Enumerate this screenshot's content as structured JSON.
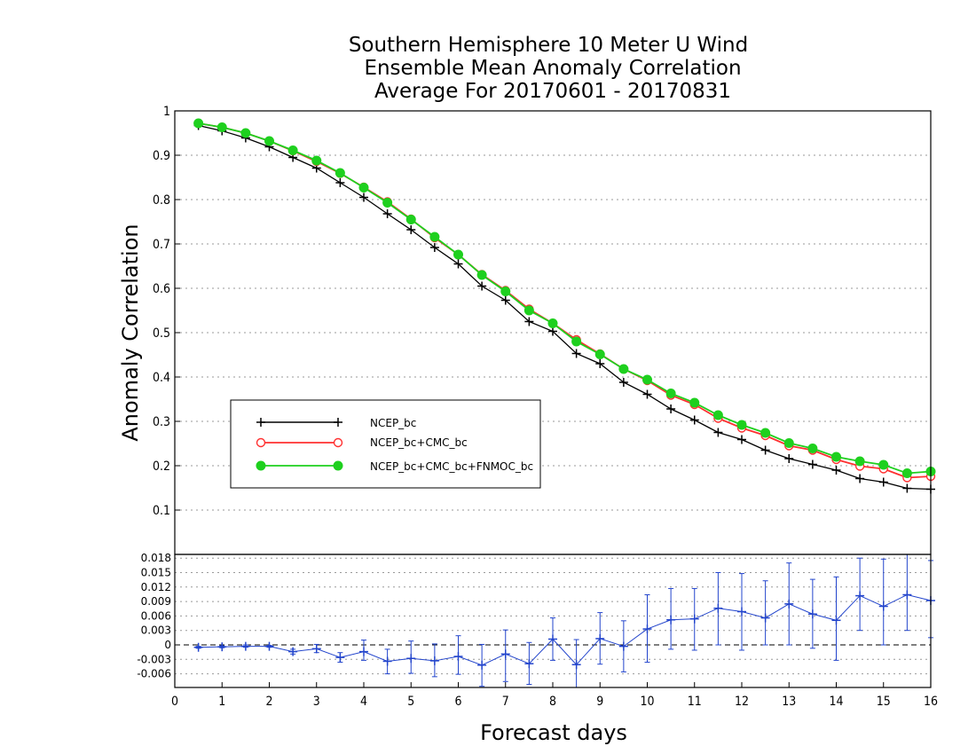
{
  "title_lines": [
    "Southern Hemisphere 10 Meter U Wind",
    "Ensemble Mean Anomaly Correlation",
    "Average For 20170601 - 20170831"
  ],
  "xlabel": "Forecast days",
  "ylabel": "Anomaly Correlation",
  "chart_data": [
    {
      "type": "line",
      "title": "Southern Hemisphere 10 Meter U Wind Ensemble Mean Anomaly Correlation Average For 20170601 - 20170831",
      "xlabel": "Forecast days",
      "ylabel": "Anomaly Correlation",
      "xlim": [
        0,
        16
      ],
      "ylim": [
        0,
        1
      ],
      "x_ticks": [
        "0",
        "1",
        "2",
        "3",
        "4",
        "5",
        "6",
        "7",
        "8",
        "9",
        "10",
        "11",
        "12",
        "13",
        "14",
        "15",
        "16"
      ],
      "y_ticks": [
        "0.1",
        "0.2",
        "0.3",
        "0.4",
        "0.5",
        "0.6",
        "0.7",
        "0.8",
        "0.9",
        "1"
      ],
      "grid": "horizontal dotted",
      "legend_position": "lower-left",
      "x": [
        0.5,
        1,
        1.5,
        2,
        2.5,
        3,
        3.5,
        4,
        4.5,
        5,
        5.5,
        6,
        6.5,
        7,
        7.5,
        8,
        8.5,
        9,
        9.5,
        10,
        10.5,
        11,
        11.5,
        12,
        12.5,
        13,
        13.5,
        14,
        14.5,
        15,
        15.5,
        16
      ],
      "series": [
        {
          "name": "NCEP_bc",
          "color": "#000000",
          "marker": "plus",
          "values": [
            0.967,
            0.955,
            0.939,
            0.919,
            0.895,
            0.871,
            0.838,
            0.805,
            0.768,
            0.732,
            0.692,
            0.655,
            0.605,
            0.573,
            0.525,
            0.503,
            0.453,
            0.43,
            0.388,
            0.361,
            0.328,
            0.303,
            0.275,
            0.259,
            0.235,
            0.216,
            0.203,
            0.19,
            0.171,
            0.163,
            0.149,
            0.147
          ]
        },
        {
          "name": "NCEP_bc+CMC_bc",
          "color": "#ff3030",
          "marker": "open-circle",
          "values": [
            0.972,
            0.963,
            0.95,
            0.932,
            0.91,
            0.886,
            0.859,
            0.828,
            0.795,
            0.756,
            0.714,
            0.676,
            0.631,
            0.595,
            0.553,
            0.521,
            0.484,
            0.452,
            0.418,
            0.392,
            0.359,
            0.338,
            0.307,
            0.285,
            0.268,
            0.245,
            0.235,
            0.214,
            0.199,
            0.193,
            0.173,
            0.176
          ]
        },
        {
          "name": "NCEP_bc+CMC_bc+FNMOC_bc",
          "color": "#1ed01e",
          "marker": "filled-circle",
          "values": [
            0.972,
            0.963,
            0.95,
            0.932,
            0.911,
            0.888,
            0.86,
            0.827,
            0.793,
            0.755,
            0.716,
            0.676,
            0.63,
            0.593,
            0.55,
            0.521,
            0.48,
            0.451,
            0.418,
            0.394,
            0.363,
            0.342,
            0.314,
            0.292,
            0.274,
            0.251,
            0.239,
            0.22,
            0.21,
            0.202,
            0.183,
            0.187
          ]
        }
      ]
    },
    {
      "type": "line",
      "subtype": "error-bars",
      "xlabel": "Forecast days",
      "xlim": [
        0,
        16
      ],
      "ylim": [
        -0.009,
        0.019
      ],
      "y_ticks": [
        "-0.006",
        "-0.003",
        "0",
        "0.003",
        "0.006",
        "0.009",
        "0.012",
        "0.015",
        "0.018"
      ],
      "x": [
        0.5,
        1,
        1.5,
        2,
        2.5,
        3,
        3.5,
        4,
        4.5,
        5,
        5.5,
        6,
        6.5,
        7,
        7.5,
        8,
        8.5,
        9,
        9.5,
        10,
        10.5,
        11,
        11.5,
        12,
        12.5,
        13,
        13.5,
        14,
        14.5,
        15,
        15.5,
        16
      ],
      "series": [
        {
          "name": "difference",
          "color": "#2244cc",
          "values": [
            -0.0005,
            -0.0004,
            -0.0003,
            -0.0003,
            -0.0014,
            -0.0008,
            -0.0026,
            -0.0014,
            -0.0034,
            -0.0028,
            -0.0033,
            -0.0024,
            -0.0042,
            -0.0019,
            -0.0039,
            0.0012,
            -0.0041,
            0.0013,
            -0.0003,
            0.0033,
            0.0052,
            0.0054,
            0.0076,
            0.0069,
            0.0056,
            0.0085,
            0.0064,
            0.0051,
            0.0102,
            0.008,
            0.0104,
            0.0092
          ],
          "error_low": [
            -0.0007,
            -0.0006,
            -0.0005,
            -0.0005,
            -0.0019,
            -0.0016,
            -0.0036,
            -0.0032,
            -0.006,
            -0.0059,
            -0.0066,
            -0.0061,
            -0.0086,
            -0.0076,
            -0.0082,
            -0.0032,
            -0.0095,
            -0.004,
            -0.0056,
            -0.0036,
            -0.0009,
            -0.0011,
            0.0,
            -0.0011,
            0.0,
            0.0,
            -0.0007,
            -0.0032,
            0.003,
            0.0,
            0.003,
            0.0015
          ],
          "error_high": [
            -0.0003,
            -0.0002,
            0.0,
            -0.0001,
            -0.0009,
            0.0001,
            -0.0016,
            0.001,
            -0.0009,
            0.0008,
            0.0002,
            0.0019,
            0.0001,
            0.0031,
            0.0005,
            0.0056,
            0.0011,
            0.0067,
            0.005,
            0.0104,
            0.0117,
            0.0117,
            0.015,
            0.0148,
            0.0133,
            0.017,
            0.0136,
            0.0141,
            0.018,
            0.0178,
            0.02,
            0.0175
          ]
        }
      ]
    }
  ]
}
